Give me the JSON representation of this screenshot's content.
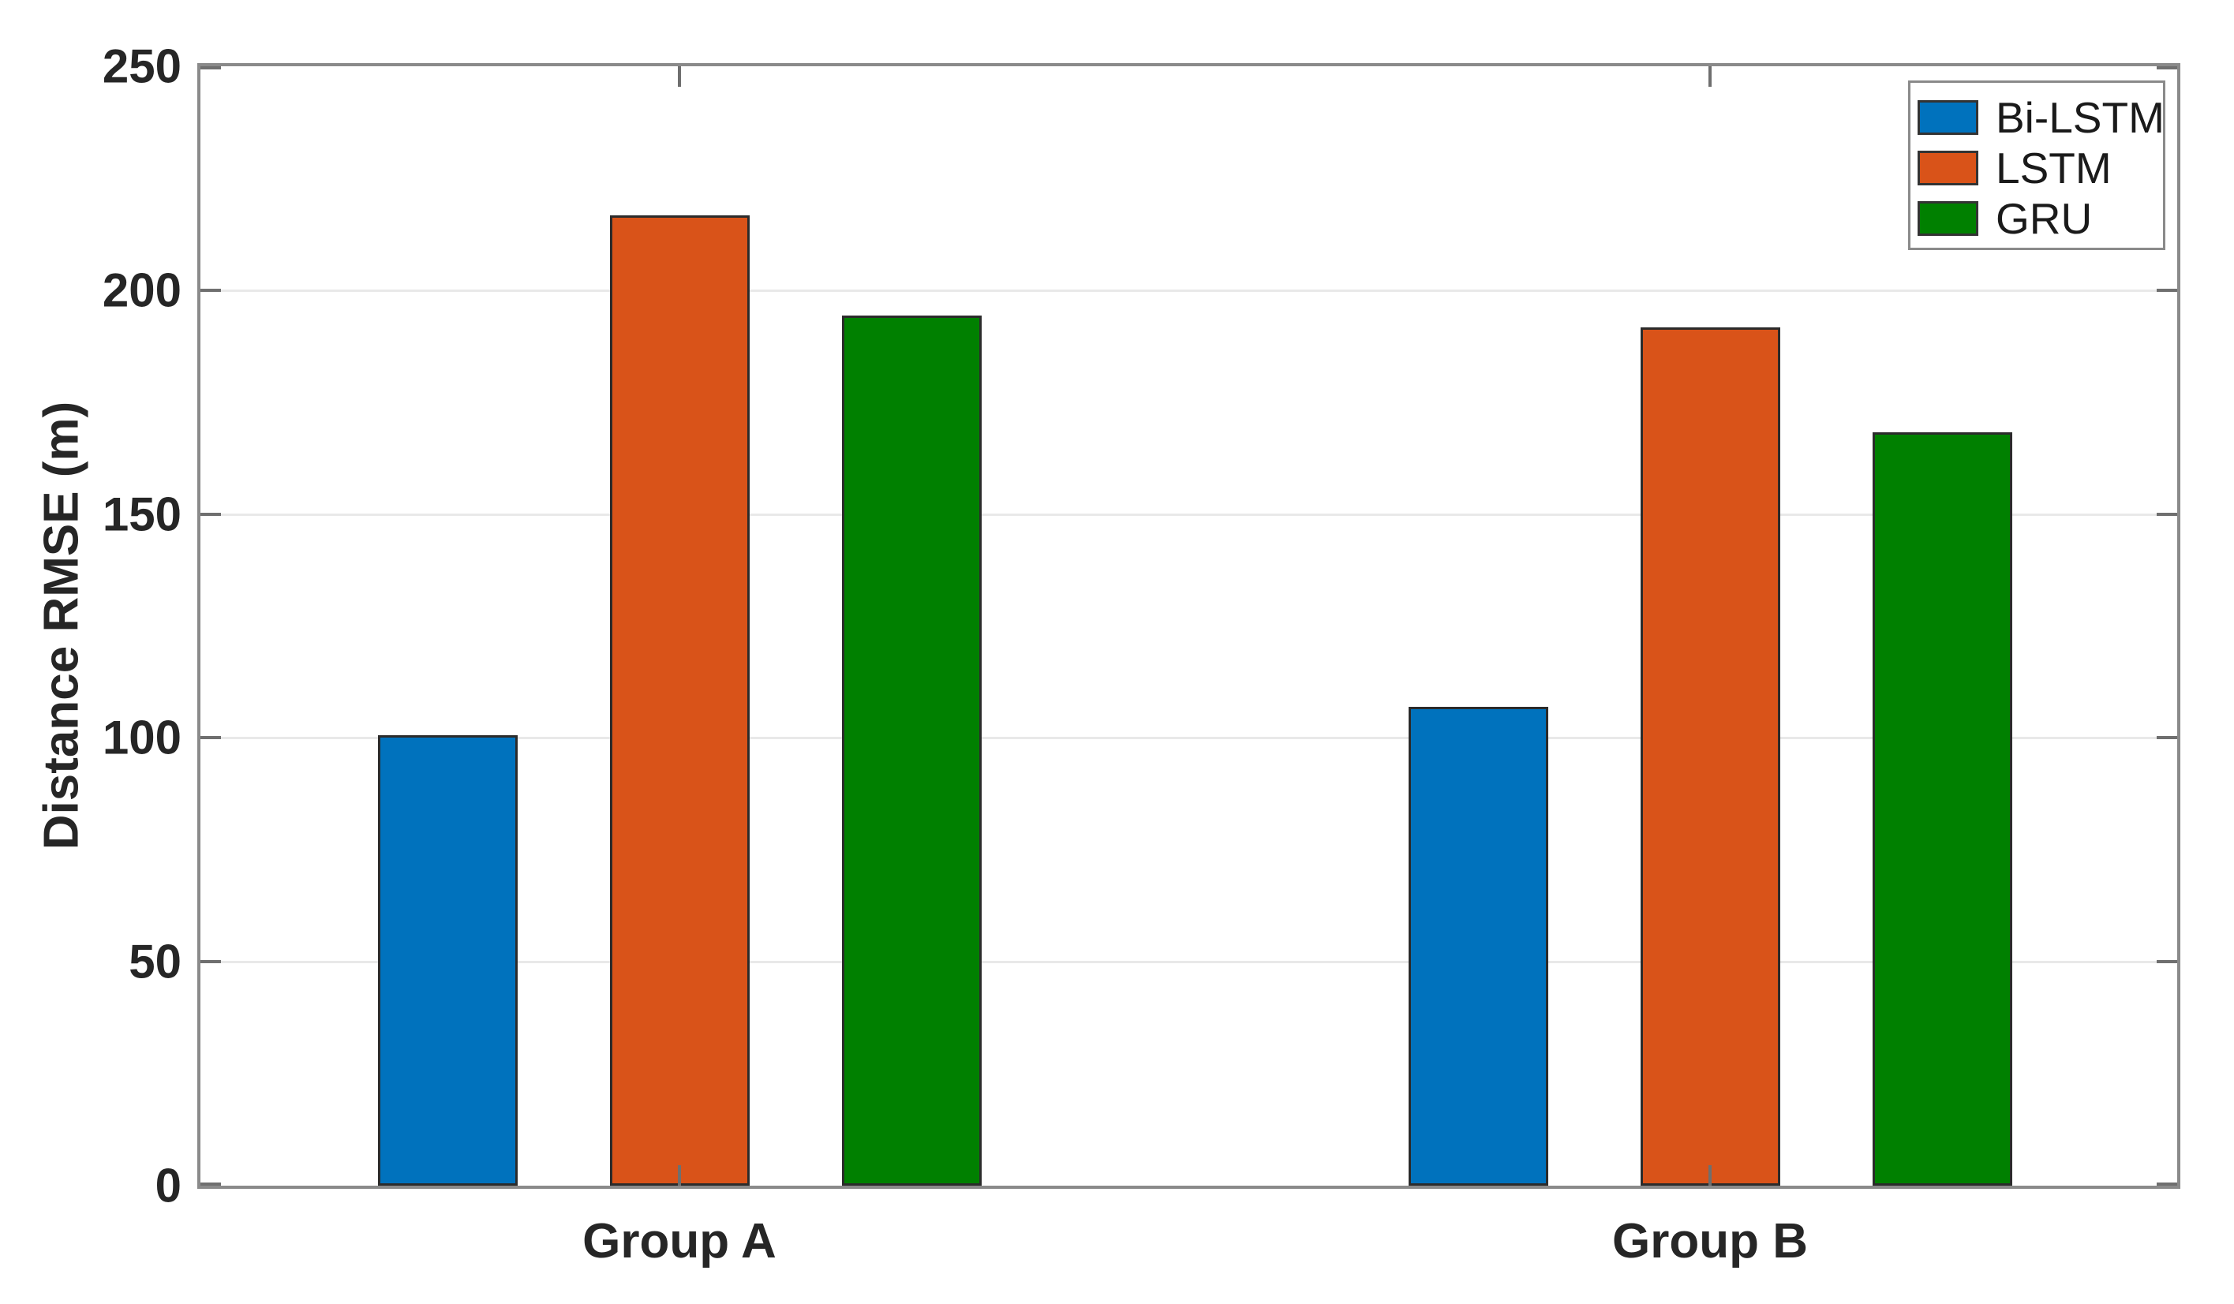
{
  "figure": {
    "background": "#ffffff",
    "text_color": "#262626",
    "axis_color": "#8a8a8a",
    "tick_color": "#6f6f6f",
    "grid_color": "#e9e9e9",
    "bar_edge_color": "#2b2b2b"
  },
  "chart_data": {
    "type": "bar",
    "title": "",
    "xlabel": "",
    "ylabel": "Distance RMSE (m)",
    "categories": [
      "Group A",
      "Group B"
    ],
    "series": [
      {
        "name": "Bi-LSTM",
        "color": "#0072BD",
        "values": [
          100.6,
          106.9
        ]
      },
      {
        "name": "LSTM",
        "color": "#D95319",
        "values": [
          216.7,
          191.6
        ]
      },
      {
        "name": "GRU",
        "color": "#008000",
        "values": [
          194.4,
          168.2
        ]
      }
    ],
    "ylim": [
      0,
      250
    ],
    "yticks": [
      0,
      50,
      100,
      150,
      200,
      250
    ],
    "grid": "horizontal",
    "legend_position": "top-right"
  }
}
